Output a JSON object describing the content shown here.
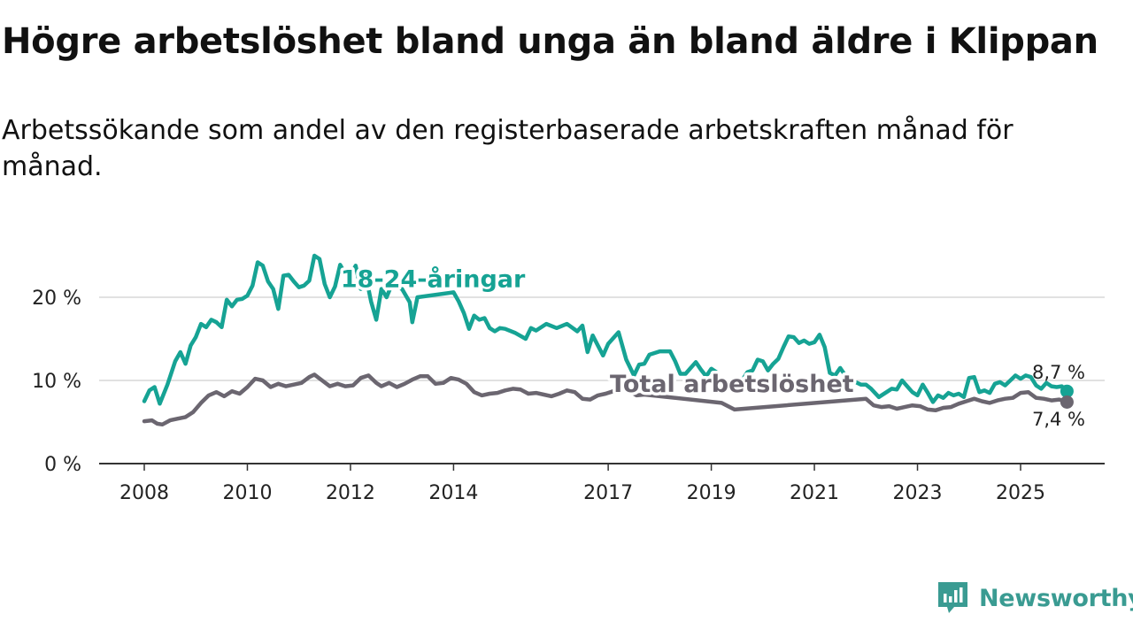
{
  "title": "Högre arbetslöshet bland unga än bland äldre i Klippan",
  "subtitle": "Arbetssökande som andel av den registerbaserade arbetskraften månad för månad.",
  "brand": {
    "name": "Newsworthy",
    "icon": "newsworthy-logo-icon",
    "color": "#3a9b92"
  },
  "chart_data": {
    "type": "line",
    "title": "",
    "xlabel": "",
    "ylabel": "",
    "xlim": [
      2008,
      2026.2
    ],
    "ylim": [
      0,
      25
    ],
    "y_ticks": [
      {
        "value": 0,
        "label": "0 %"
      },
      {
        "value": 10,
        "label": "10 %"
      },
      {
        "value": 20,
        "label": "20 %"
      }
    ],
    "x_ticks": [
      {
        "value": 2008,
        "label": "2008"
      },
      {
        "value": 2010,
        "label": "2010"
      },
      {
        "value": 2012,
        "label": "2012"
      },
      {
        "value": 2014,
        "label": "2014"
      },
      {
        "value": 2017,
        "label": "2017"
      },
      {
        "value": 2019,
        "label": "2019"
      },
      {
        "value": 2021,
        "label": "2021"
      },
      {
        "value": 2023,
        "label": "2023"
      },
      {
        "value": 2025,
        "label": "2025"
      }
    ],
    "grid": true,
    "series": [
      {
        "name": "18-24-åringar",
        "color": "#16a394",
        "end_label": "8,7 %",
        "points": [
          [
            2008.0,
            7.5
          ],
          [
            2008.1,
            8.8
          ],
          [
            2008.2,
            9.2
          ],
          [
            2008.3,
            7.2
          ],
          [
            2008.45,
            9.5
          ],
          [
            2008.6,
            12.3
          ],
          [
            2008.7,
            13.4
          ],
          [
            2008.8,
            12.0
          ],
          [
            2008.9,
            14.2
          ],
          [
            2009.0,
            15.2
          ],
          [
            2009.1,
            16.8
          ],
          [
            2009.2,
            16.4
          ],
          [
            2009.3,
            17.3
          ],
          [
            2009.4,
            17.0
          ],
          [
            2009.5,
            16.4
          ],
          [
            2009.6,
            19.7
          ],
          [
            2009.7,
            18.9
          ],
          [
            2009.8,
            19.7
          ],
          [
            2009.9,
            19.8
          ],
          [
            2010.0,
            20.2
          ],
          [
            2010.1,
            21.4
          ],
          [
            2010.2,
            24.2
          ],
          [
            2010.3,
            23.8
          ],
          [
            2010.4,
            21.9
          ],
          [
            2010.5,
            21.0
          ],
          [
            2010.6,
            18.6
          ],
          [
            2010.7,
            22.6
          ],
          [
            2010.8,
            22.7
          ],
          [
            2010.9,
            21.9
          ],
          [
            2011.0,
            21.2
          ],
          [
            2011.1,
            21.4
          ],
          [
            2011.2,
            22.0
          ],
          [
            2011.3,
            25.0
          ],
          [
            2011.4,
            24.6
          ],
          [
            2011.5,
            21.6
          ],
          [
            2011.6,
            20.0
          ],
          [
            2011.7,
            21.3
          ],
          [
            2011.8,
            23.9
          ],
          [
            2011.9,
            22.8
          ],
          [
            2012.0,
            22.6
          ],
          [
            2012.1,
            23.8
          ],
          [
            2012.2,
            21.0
          ],
          [
            2012.3,
            22.5
          ],
          [
            2012.4,
            19.5
          ],
          [
            2012.5,
            17.3
          ],
          [
            2012.6,
            21.0
          ],
          [
            2012.7,
            20.0
          ],
          [
            2012.8,
            21.5
          ],
          [
            2013.0,
            21.0
          ],
          [
            2013.15,
            19.4
          ],
          [
            2013.2,
            17.0
          ],
          [
            2013.3,
            20.0
          ],
          [
            2014.0,
            20.6
          ],
          [
            2014.1,
            19.5
          ],
          [
            2014.2,
            18.1
          ],
          [
            2014.3,
            16.2
          ],
          [
            2014.4,
            17.8
          ],
          [
            2014.5,
            17.3
          ],
          [
            2014.6,
            17.5
          ],
          [
            2014.7,
            16.3
          ],
          [
            2014.8,
            15.9
          ],
          [
            2014.9,
            16.3
          ],
          [
            2015.0,
            16.2
          ],
          [
            2015.2,
            15.7
          ],
          [
            2015.4,
            15.0
          ],
          [
            2015.5,
            16.3
          ],
          [
            2015.6,
            16.0
          ],
          [
            2015.8,
            16.8
          ],
          [
            2016.0,
            16.3
          ],
          [
            2016.2,
            16.8
          ],
          [
            2016.4,
            15.9
          ],
          [
            2016.5,
            16.6
          ],
          [
            2016.6,
            13.4
          ],
          [
            2016.7,
            15.4
          ],
          [
            2016.9,
            13.0
          ],
          [
            2017.0,
            14.4
          ],
          [
            2017.2,
            15.8
          ],
          [
            2017.35,
            12.5
          ],
          [
            2017.5,
            10.6
          ],
          [
            2017.6,
            11.9
          ],
          [
            2017.7,
            12.0
          ],
          [
            2017.8,
            13.1
          ],
          [
            2018.0,
            13.5
          ],
          [
            2018.2,
            13.5
          ],
          [
            2018.3,
            12.3
          ],
          [
            2018.4,
            10.8
          ],
          [
            2018.5,
            10.8
          ],
          [
            2018.6,
            11.5
          ],
          [
            2018.7,
            12.2
          ],
          [
            2018.8,
            11.3
          ],
          [
            2018.9,
            10.5
          ],
          [
            2019.0,
            11.4
          ],
          [
            2019.1,
            11.0
          ],
          [
            2019.2,
            9.0
          ],
          [
            2019.6,
            10.0
          ],
          [
            2019.7,
            11.0
          ],
          [
            2019.8,
            11.2
          ],
          [
            2019.9,
            12.5
          ],
          [
            2020.0,
            12.3
          ],
          [
            2020.1,
            11.2
          ],
          [
            2020.2,
            12.0
          ],
          [
            2020.3,
            12.6
          ],
          [
            2020.4,
            14.0
          ],
          [
            2020.5,
            15.3
          ],
          [
            2020.6,
            15.2
          ],
          [
            2020.7,
            14.5
          ],
          [
            2020.8,
            14.8
          ],
          [
            2020.9,
            14.4
          ],
          [
            2021.0,
            14.6
          ],
          [
            2021.1,
            15.5
          ],
          [
            2021.2,
            14.0
          ],
          [
            2021.3,
            10.9
          ],
          [
            2021.4,
            10.6
          ],
          [
            2021.5,
            11.5
          ],
          [
            2021.6,
            10.6
          ],
          [
            2021.7,
            10.0
          ],
          [
            2021.8,
            9.8
          ],
          [
            2021.9,
            9.5
          ],
          [
            2022.0,
            9.5
          ],
          [
            2022.1,
            9.0
          ],
          [
            2022.25,
            8.0
          ],
          [
            2022.4,
            8.6
          ],
          [
            2022.5,
            9.0
          ],
          [
            2022.6,
            8.9
          ],
          [
            2022.7,
            10.0
          ],
          [
            2022.8,
            9.3
          ],
          [
            2022.9,
            8.6
          ],
          [
            2023.0,
            8.2
          ],
          [
            2023.1,
            9.5
          ],
          [
            2023.2,
            8.5
          ],
          [
            2023.3,
            7.4
          ],
          [
            2023.4,
            8.2
          ],
          [
            2023.5,
            7.9
          ],
          [
            2023.6,
            8.5
          ],
          [
            2023.7,
            8.2
          ],
          [
            2023.8,
            8.4
          ],
          [
            2023.9,
            8.0
          ],
          [
            2024.0,
            10.3
          ],
          [
            2024.1,
            10.4
          ],
          [
            2024.2,
            8.6
          ],
          [
            2024.3,
            8.8
          ],
          [
            2024.4,
            8.5
          ],
          [
            2024.5,
            9.6
          ],
          [
            2024.6,
            9.8
          ],
          [
            2024.7,
            9.4
          ],
          [
            2024.8,
            10.0
          ],
          [
            2024.9,
            10.6
          ],
          [
            2025.0,
            10.2
          ],
          [
            2025.1,
            10.6
          ],
          [
            2025.2,
            10.4
          ],
          [
            2025.3,
            9.4
          ],
          [
            2025.4,
            9.0
          ],
          [
            2025.5,
            9.7
          ],
          [
            2025.6,
            9.3
          ],
          [
            2025.7,
            9.2
          ],
          [
            2025.8,
            9.3
          ],
          [
            2025.9,
            8.7
          ]
        ]
      },
      {
        "name": "Total arbetslöshet",
        "color": "#6b6670",
        "end_label": "7,4 %",
        "points": [
          [
            2008.0,
            5.1
          ],
          [
            2008.15,
            5.2
          ],
          [
            2008.25,
            4.8
          ],
          [
            2008.35,
            4.7
          ],
          [
            2008.5,
            5.2
          ],
          [
            2008.65,
            5.4
          ],
          [
            2008.8,
            5.6
          ],
          [
            2008.95,
            6.2
          ],
          [
            2009.1,
            7.3
          ],
          [
            2009.25,
            8.2
          ],
          [
            2009.4,
            8.6
          ],
          [
            2009.55,
            8.1
          ],
          [
            2009.7,
            8.7
          ],
          [
            2009.85,
            8.4
          ],
          [
            2010.0,
            9.2
          ],
          [
            2010.15,
            10.2
          ],
          [
            2010.3,
            10.0
          ],
          [
            2010.45,
            9.2
          ],
          [
            2010.6,
            9.6
          ],
          [
            2010.75,
            9.3
          ],
          [
            2010.9,
            9.5
          ],
          [
            2011.05,
            9.7
          ],
          [
            2011.2,
            10.4
          ],
          [
            2011.3,
            10.7
          ],
          [
            2011.45,
            10.0
          ],
          [
            2011.6,
            9.3
          ],
          [
            2011.75,
            9.6
          ],
          [
            2011.9,
            9.3
          ],
          [
            2012.05,
            9.4
          ],
          [
            2012.2,
            10.3
          ],
          [
            2012.35,
            10.6
          ],
          [
            2012.5,
            9.7
          ],
          [
            2012.6,
            9.3
          ],
          [
            2012.75,
            9.7
          ],
          [
            2012.9,
            9.2
          ],
          [
            2013.05,
            9.6
          ],
          [
            2013.2,
            10.1
          ],
          [
            2013.35,
            10.5
          ],
          [
            2013.5,
            10.5
          ],
          [
            2013.65,
            9.6
          ],
          [
            2013.8,
            9.7
          ],
          [
            2013.95,
            10.3
          ],
          [
            2014.1,
            10.1
          ],
          [
            2014.25,
            9.6
          ],
          [
            2014.4,
            8.6
          ],
          [
            2014.55,
            8.2
          ],
          [
            2014.7,
            8.4
          ],
          [
            2014.85,
            8.5
          ],
          [
            2015.0,
            8.8
          ],
          [
            2015.15,
            9.0
          ],
          [
            2015.3,
            8.9
          ],
          [
            2015.45,
            8.4
          ],
          [
            2015.6,
            8.5
          ],
          [
            2015.75,
            8.3
          ],
          [
            2015.9,
            8.1
          ],
          [
            2016.05,
            8.4
          ],
          [
            2016.2,
            8.8
          ],
          [
            2016.35,
            8.6
          ],
          [
            2016.5,
            7.8
          ],
          [
            2016.65,
            7.7
          ],
          [
            2016.8,
            8.2
          ],
          [
            2016.95,
            8.4
          ],
          [
            2017.1,
            8.7
          ],
          [
            2017.25,
            8.9
          ],
          [
            2017.4,
            8.8
          ],
          [
            2017.55,
            8.2
          ],
          [
            2017.7,
            8.3
          ],
          [
            2019.2,
            7.3
          ],
          [
            2019.45,
            6.5
          ],
          [
            2022.0,
            7.8
          ],
          [
            2022.15,
            7.0
          ],
          [
            2022.3,
            6.8
          ],
          [
            2022.45,
            6.9
          ],
          [
            2022.6,
            6.6
          ],
          [
            2022.75,
            6.8
          ],
          [
            2022.9,
            7.0
          ],
          [
            2023.05,
            6.9
          ],
          [
            2023.2,
            6.5
          ],
          [
            2023.35,
            6.4
          ],
          [
            2023.5,
            6.7
          ],
          [
            2023.65,
            6.8
          ],
          [
            2023.8,
            7.2
          ],
          [
            2023.95,
            7.5
          ],
          [
            2024.1,
            7.8
          ],
          [
            2024.25,
            7.5
          ],
          [
            2024.4,
            7.3
          ],
          [
            2024.55,
            7.6
          ],
          [
            2024.7,
            7.8
          ],
          [
            2024.85,
            7.9
          ],
          [
            2025.0,
            8.5
          ],
          [
            2025.15,
            8.6
          ],
          [
            2025.3,
            7.9
          ],
          [
            2025.45,
            7.8
          ],
          [
            2025.6,
            7.6
          ],
          [
            2025.75,
            7.7
          ],
          [
            2025.9,
            7.4
          ]
        ]
      }
    ],
    "annotations": [
      {
        "text": "18-24-åringar",
        "series": 0,
        "x": 2013.6,
        "y": 21.2
      },
      {
        "text": "Total arbetslöshet",
        "series": 1,
        "x": 2019.4,
        "y": 8.6
      }
    ]
  }
}
